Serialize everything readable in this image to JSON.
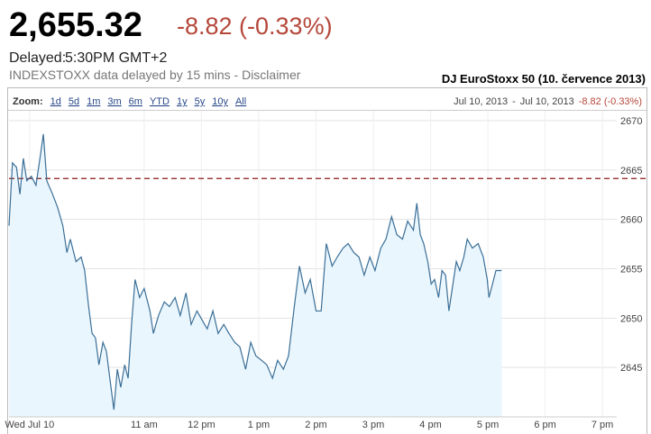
{
  "header": {
    "price": "2,655.32",
    "change": "-8.82 (-0.33%)",
    "delayed_label": "Delayed:",
    "delayed_time": "5:30PM GMT+2",
    "source_note": "INDEXSTOXX data delayed by 15 mins - Disclaimer",
    "chart_caption": "DJ EuroStoxx 50 (10. července 2013)"
  },
  "chart_data": {
    "type": "line",
    "zoom_label": "Zoom:",
    "zoom_options": [
      "1d",
      "5d",
      "1m",
      "3m",
      "6m",
      "YTD",
      "1y",
      "5y",
      "10y",
      "All"
    ],
    "range_start": "Jul 10, 2013",
    "range_separator": "-",
    "range_end": "Jul 10, 2013",
    "range_change": "-8.82 (-0.33%)",
    "color": "#3b6f97",
    "area_color": "#eaf6fd",
    "reference_line": 2664.14,
    "reference_color": "#8b1a1a",
    "xlim": [
      8.64,
      19.25
    ],
    "ylim": [
      2640,
      2671
    ],
    "xticks": [
      {
        "value": 9,
        "label": "Wed Jul 10"
      },
      {
        "value": 11,
        "label": "11 am"
      },
      {
        "value": 12,
        "label": "12 pm"
      },
      {
        "value": 13,
        "label": "1 pm"
      },
      {
        "value": 14,
        "label": "2 pm"
      },
      {
        "value": 15,
        "label": "3 pm"
      },
      {
        "value": 16,
        "label": "4 pm"
      },
      {
        "value": 17,
        "label": "5 pm"
      },
      {
        "value": 18,
        "label": "6 pm"
      },
      {
        "value": 19,
        "label": "7 pm"
      }
    ],
    "yticks": [
      2645,
      2650,
      2655,
      2660,
      2665,
      2670
    ],
    "grid": true,
    "x": [
      8.64,
      8.7,
      8.77,
      8.83,
      8.89,
      8.95,
      9.03,
      9.11,
      9.18,
      9.24,
      9.3,
      9.4,
      9.49,
      9.58,
      9.65,
      9.71,
      9.81,
      9.9,
      9.96,
      10.03,
      10.09,
      10.15,
      10.21,
      10.28,
      10.34,
      10.4,
      10.47,
      10.53,
      10.59,
      10.66,
      10.72,
      10.78,
      10.84,
      10.92,
      11.0,
      11.1,
      11.16,
      11.25,
      11.35,
      11.44,
      11.54,
      11.63,
      11.73,
      11.82,
      11.92,
      12.01,
      12.1,
      12.2,
      12.29,
      12.39,
      12.48,
      12.58,
      12.67,
      12.77,
      12.86,
      12.95,
      13.05,
      13.14,
      13.24,
      13.33,
      13.43,
      13.52,
      13.62,
      13.71,
      13.81,
      13.9,
      14.0,
      14.09,
      14.18,
      14.28,
      14.37,
      14.47,
      14.56,
      14.66,
      14.75,
      14.84,
      14.94,
      15.03,
      15.13,
      15.22,
      15.32,
      15.41,
      15.51,
      15.6,
      15.7,
      15.76,
      15.82,
      15.88,
      15.95,
      16.01,
      16.07,
      16.14,
      16.2,
      16.26,
      16.32,
      16.39,
      16.45,
      16.51,
      16.58,
      16.64,
      16.73,
      16.83,
      16.92,
      16.99,
      17.02,
      17.08,
      17.14,
      17.24
    ],
    "values": [
      2659.36,
      2665.73,
      2665.27,
      2662.55,
      2666.18,
      2663.91,
      2664.36,
      2663.45,
      2666.18,
      2668.64,
      2663.91,
      2662.55,
      2661.18,
      2659.36,
      2656.64,
      2658.0,
      2655.73,
      2656.18,
      2654.82,
      2651.18,
      2648.45,
      2648.0,
      2645.27,
      2647.55,
      2646.64,
      2643.91,
      2640.73,
      2644.82,
      2643.0,
      2645.27,
      2643.91,
      2649.36,
      2653.91,
      2652.09,
      2653.0,
      2650.73,
      2648.45,
      2650.27,
      2651.64,
      2651.18,
      2652.09,
      2650.27,
      2652.55,
      2649.36,
      2650.73,
      2649.82,
      2648.91,
      2650.73,
      2648.45,
      2649.36,
      2648.45,
      2647.55,
      2647.09,
      2644.82,
      2647.55,
      2646.18,
      2645.73,
      2645.27,
      2643.91,
      2645.73,
      2644.82,
      2646.18,
      2651.18,
      2655.27,
      2652.55,
      2653.91,
      2650.73,
      2650.73,
      2657.55,
      2655.27,
      2656.18,
      2657.09,
      2657.55,
      2656.64,
      2656.18,
      2654.36,
      2656.18,
      2654.82,
      2657.09,
      2658.0,
      2660.27,
      2658.45,
      2658.0,
      2659.82,
      2658.91,
      2661.64,
      2658.45,
      2657.55,
      2655.73,
      2653.45,
      2653.91,
      2652.09,
      2654.82,
      2654.36,
      2650.73,
      2653.45,
      2655.73,
      2654.82,
      2656.18,
      2658.0,
      2657.09,
      2657.55,
      2656.18,
      2653.91,
      2652.09,
      2653.45,
      2654.82,
      2654.82
    ]
  }
}
